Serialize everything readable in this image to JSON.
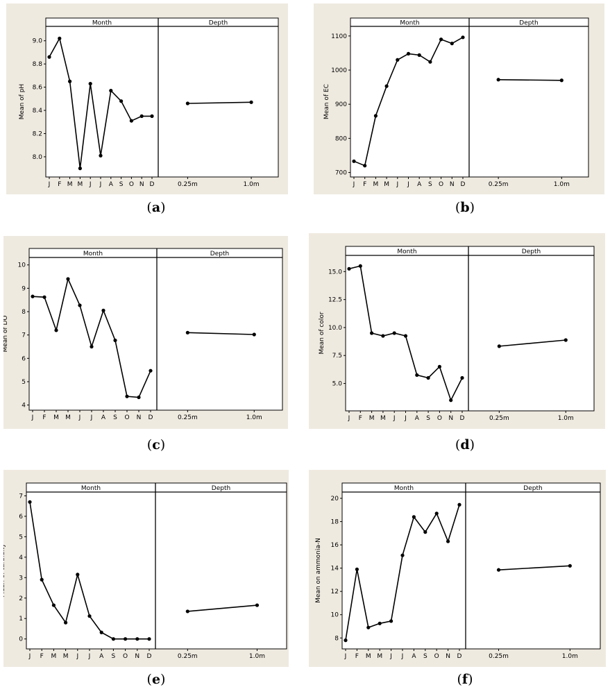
{
  "strip_labels": {
    "month": "Month",
    "depth": "Depth"
  },
  "captions": [
    "a",
    "b",
    "c",
    "d",
    "e",
    "f"
  ],
  "chart_data": [
    {
      "type": "line",
      "ylabel": "Mean of pH",
      "ylim": [
        7.85,
        9.1
      ],
      "yticks": [
        "8.0",
        "8.2",
        "8.4",
        "8.6",
        "8.8",
        "9.0"
      ],
      "month": {
        "categories": [
          "J",
          "F",
          "M",
          "M",
          "J",
          "J",
          "A",
          "S",
          "O",
          "N",
          "D"
        ],
        "values": [
          8.86,
          9.02,
          8.65,
          7.9,
          8.63,
          8.01,
          8.57,
          8.48,
          8.31,
          8.35,
          8.35
        ]
      },
      "depth": {
        "categories": [
          "0.25m",
          "1.0m"
        ],
        "values": [
          8.46,
          8.47
        ]
      }
    },
    {
      "type": "line",
      "ylabel": "Mean of EC",
      "ylim": [
        695,
        1120
      ],
      "yticks": [
        "700",
        "800",
        "900",
        "1000",
        "1100"
      ],
      "month": {
        "categories": [
          "J",
          "F",
          "M",
          "M",
          "J",
          "J",
          "A",
          "S",
          "O",
          "N",
          "D"
        ],
        "values": [
          733,
          720,
          866,
          953,
          1030,
          1048,
          1044,
          1024,
          1090,
          1078,
          1096
        ]
      },
      "depth": {
        "categories": [
          "0.25m",
          "1.0m"
        ],
        "values": [
          972,
          970
        ]
      }
    },
    {
      "type": "line",
      "ylabel": "Mean of DO",
      "ylim": [
        3.9,
        10.2
      ],
      "yticks": [
        "4",
        "5",
        "6",
        "7",
        "8",
        "9",
        "10"
      ],
      "month": {
        "categories": [
          "J",
          "F",
          "M",
          "M",
          "J",
          "J",
          "A",
          "S",
          "O",
          "N",
          "D"
        ],
        "values": [
          8.65,
          8.62,
          7.2,
          9.4,
          8.27,
          6.5,
          8.05,
          6.77,
          4.37,
          4.33,
          5.47
        ]
      },
      "depth": {
        "categories": [
          "0.25m",
          "1.0m"
        ],
        "values": [
          7.1,
          7.02
        ]
      }
    },
    {
      "type": "line",
      "ylabel": "Mean of color",
      "ylim": [
        2.8,
        16.2
      ],
      "yticks": [
        "5.0",
        "7.5",
        "10.0",
        "12.5",
        "15.0"
      ],
      "month": {
        "categories": [
          "J",
          "F",
          "M",
          "M",
          "J",
          "J",
          "A",
          "S",
          "O",
          "N",
          "D"
        ],
        "values": [
          15.25,
          15.5,
          9.5,
          9.25,
          9.5,
          9.25,
          5.75,
          5.5,
          6.5,
          3.5,
          5.5
        ]
      },
      "depth": {
        "categories": [
          "0.25m",
          "1.0m"
        ],
        "values": [
          8.33,
          8.88
        ]
      }
    },
    {
      "type": "line",
      "ylabel": "Mean of turbidity",
      "ylim": [
        -0.35,
        7.05
      ],
      "yticks": [
        "0",
        "1",
        "2",
        "3",
        "4",
        "5",
        "6",
        "7"
      ],
      "month": {
        "categories": [
          "J",
          "F",
          "M",
          "M",
          "J",
          "J",
          "A",
          "S",
          "O",
          "N",
          "D"
        ],
        "values": [
          6.7,
          2.9,
          1.65,
          0.8,
          3.15,
          1.12,
          0.32,
          0.0,
          0.0,
          0.0,
          0.0
        ]
      },
      "depth": {
        "categories": [
          "0.25m",
          "1.0m"
        ],
        "values": [
          1.35,
          1.65
        ]
      }
    },
    {
      "type": "line",
      "ylabel": "Mean on ammonia-N",
      "ylim": [
        7.3,
        20.3
      ],
      "yticks": [
        "8",
        "10",
        "12",
        "14",
        "16",
        "18",
        "20"
      ],
      "month": {
        "categories": [
          "J",
          "F",
          "M",
          "M",
          "J",
          "J",
          "A",
          "S",
          "O",
          "N",
          "D"
        ],
        "values": [
          7.8,
          13.9,
          8.9,
          9.25,
          9.45,
          15.1,
          18.4,
          17.1,
          18.7,
          16.3,
          19.45
        ]
      },
      "depth": {
        "categories": [
          "0.25m",
          "1.0m"
        ],
        "values": [
          13.85,
          14.2
        ]
      }
    }
  ]
}
